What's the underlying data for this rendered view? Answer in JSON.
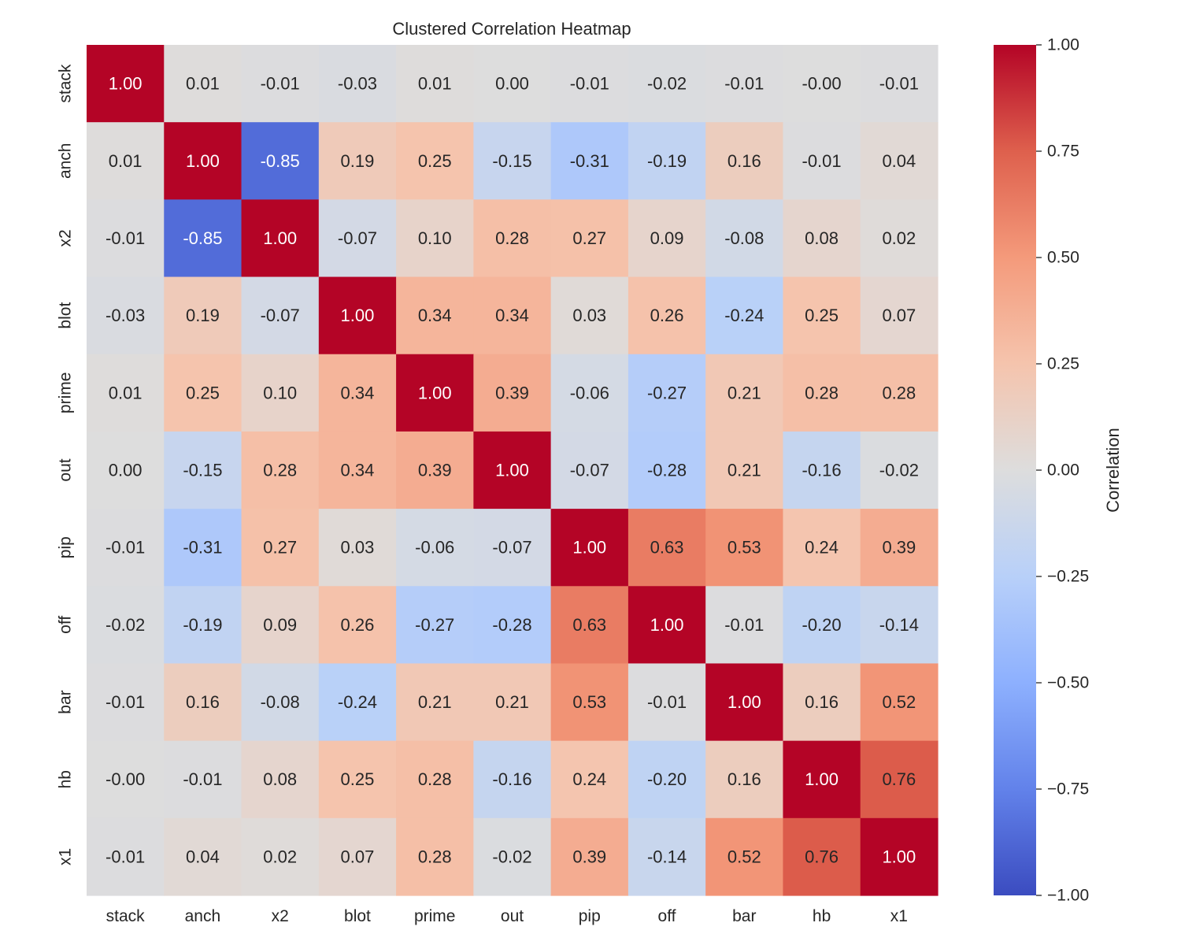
{
  "chart_data": {
    "type": "heatmap",
    "title": "Clustered Correlation Heatmap",
    "xlabel": "",
    "ylabel": "",
    "labels": [
      "stack",
      "anch",
      "x2",
      "blot",
      "prime",
      "out",
      "pip",
      "off",
      "bar",
      "hb",
      "x1"
    ],
    "matrix": [
      [
        1.0,
        0.01,
        -0.01,
        -0.03,
        0.01,
        0.0,
        -0.01,
        -0.02,
        -0.01,
        -0.0,
        -0.01
      ],
      [
        0.01,
        1.0,
        -0.85,
        0.19,
        0.25,
        -0.15,
        -0.31,
        -0.19,
        0.16,
        -0.01,
        0.04
      ],
      [
        -0.01,
        -0.85,
        1.0,
        -0.07,
        0.1,
        0.28,
        0.27,
        0.09,
        -0.08,
        0.08,
        0.02
      ],
      [
        -0.03,
        0.19,
        -0.07,
        1.0,
        0.34,
        0.34,
        0.03,
        0.26,
        -0.24,
        0.25,
        0.07
      ],
      [
        0.01,
        0.25,
        0.1,
        0.34,
        1.0,
        0.39,
        -0.06,
        -0.27,
        0.21,
        0.28,
        0.28
      ],
      [
        0.0,
        -0.15,
        0.28,
        0.34,
        0.39,
        1.0,
        -0.07,
        -0.28,
        0.21,
        -0.16,
        -0.02
      ],
      [
        -0.01,
        -0.31,
        0.27,
        0.03,
        -0.06,
        -0.07,
        1.0,
        0.63,
        0.53,
        0.24,
        0.39
      ],
      [
        -0.02,
        -0.19,
        0.09,
        0.26,
        -0.27,
        -0.28,
        0.63,
        1.0,
        -0.01,
        -0.2,
        -0.14
      ],
      [
        -0.01,
        0.16,
        -0.08,
        -0.24,
        0.21,
        0.21,
        0.53,
        -0.01,
        1.0,
        0.16,
        0.52
      ],
      [
        -0.0,
        -0.01,
        0.08,
        0.25,
        0.28,
        -0.16,
        0.24,
        -0.2,
        0.16,
        1.0,
        0.76
      ],
      [
        -0.01,
        0.04,
        0.02,
        0.07,
        0.28,
        -0.02,
        0.39,
        -0.14,
        0.52,
        0.76,
        1.0
      ]
    ],
    "value_format": "0.00",
    "colormap": "coolwarm",
    "vmin": -1.0,
    "vmax": 1.0,
    "colorbar": {
      "label": "Correlation",
      "ticks": [
        1.0,
        0.75,
        0.5,
        0.25,
        0.0,
        -0.25,
        -0.5,
        -0.75,
        -1.0
      ],
      "tick_labels": [
        "1.00",
        "0.75",
        "0.50",
        "0.25",
        "0.00",
        "−0.25",
        "−0.50",
        "−0.75",
        "−1.00"
      ]
    }
  }
}
